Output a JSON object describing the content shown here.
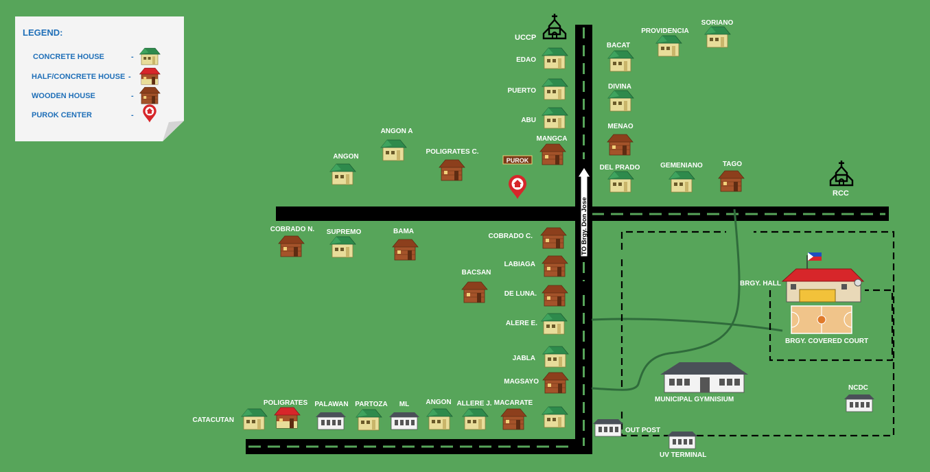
{
  "legend": {
    "title": "LEGEND:",
    "items": [
      {
        "label": "CONCRETE HOUSE",
        "sep": "-",
        "icon": "concrete-house-icon"
      },
      {
        "label": "HALF/CONCRETE HOUSE",
        "sep": "-",
        "icon": "half-concrete-house-icon"
      },
      {
        "label": "WOODEN HOUSE",
        "sep": "-",
        "icon": "wooden-house-icon"
      },
      {
        "label": "PUROK CENTER",
        "sep": "-",
        "icon": "purok-center-pin-icon"
      }
    ]
  },
  "purok_sign": "PUROK",
  "road_sign": "TO Brgy. Don Jose",
  "churches": [
    {
      "id": "uccp",
      "label": "UCCP"
    },
    {
      "id": "rcc",
      "label": "RCC"
    }
  ],
  "houses": [
    {
      "id": "edao",
      "label": "EDAO",
      "type": "concrete"
    },
    {
      "id": "puerto",
      "label": "PUERTO",
      "type": "concrete"
    },
    {
      "id": "abu",
      "label": "ABU",
      "type": "concrete"
    },
    {
      "id": "mangca",
      "label": "MANGCA",
      "type": "wooden"
    },
    {
      "id": "bacat",
      "label": "BACAT",
      "type": "concrete"
    },
    {
      "id": "providencia",
      "label": "PROVIDENCIA",
      "type": "concrete"
    },
    {
      "id": "soriano",
      "label": "SORIANO",
      "type": "concrete"
    },
    {
      "id": "divina",
      "label": "DIVINA",
      "type": "concrete"
    },
    {
      "id": "menao",
      "label": "MENAO",
      "type": "wooden"
    },
    {
      "id": "delprado",
      "label": "DEL PRADO",
      "type": "concrete"
    },
    {
      "id": "gemeniano",
      "label": "GEMENIANO",
      "type": "concrete"
    },
    {
      "id": "tago",
      "label": "TAGO",
      "type": "wooden"
    },
    {
      "id": "angona",
      "label": "ANGON A",
      "type": "concrete"
    },
    {
      "id": "angon",
      "label": "ANGON",
      "type": "concrete"
    },
    {
      "id": "poligratesc",
      "label": "POLIGRATES C.",
      "type": "wooden"
    },
    {
      "id": "cobradon",
      "label": "COBRADO N.",
      "type": "wooden"
    },
    {
      "id": "supremo",
      "label": "SUPREMO",
      "type": "concrete"
    },
    {
      "id": "bama",
      "label": "BAMA",
      "type": "wooden"
    },
    {
      "id": "cobradoc",
      "label": "COBRADO C.",
      "type": "wooden"
    },
    {
      "id": "labiaga",
      "label": "LABIAGA",
      "type": "wooden"
    },
    {
      "id": "bacsan",
      "label": "BACSAN",
      "type": "wooden"
    },
    {
      "id": "deluna",
      "label": "DE LUNA.",
      "type": "wooden"
    },
    {
      "id": "alere",
      "label": "ALERE E.",
      "type": "concrete"
    },
    {
      "id": "jabla",
      "label": "JABLA",
      "type": "concrete"
    },
    {
      "id": "magsayo",
      "label": "MAGSAYO",
      "type": "wooden"
    },
    {
      "id": "catacutan",
      "label": "CATACUTAN",
      "type": "concrete"
    },
    {
      "id": "poligrates",
      "label": "POLIGRATES",
      "type": "half"
    },
    {
      "id": "palawan",
      "label": "PALAWAN",
      "type": "building"
    },
    {
      "id": "partoza",
      "label": "PARTOZA",
      "type": "concrete"
    },
    {
      "id": "ml",
      "label": "ML",
      "type": "building"
    },
    {
      "id": "angon2",
      "label": "ANGON",
      "type": "concrete"
    },
    {
      "id": "allere",
      "label": "ALLERE J.",
      "type": "concrete"
    },
    {
      "id": "macarate",
      "label": "MACARATE",
      "type": "wooden"
    },
    {
      "id": "unlabeled",
      "label": "",
      "type": "concrete"
    }
  ],
  "facilities": {
    "hall": "BRGY. HALL",
    "court": "BRGY. COVERED COURT",
    "gym": "MUNICIPAL  GYMNISIUM",
    "ncdc": "NCDC",
    "outpost": "OUT POST",
    "terminal": "UV TERMINAL"
  },
  "colors": {
    "grass": "#57a55a",
    "road": "#000000",
    "road_dash": "#57a55a",
    "legend_text": "#1f6fb8",
    "concrete_roof": "#2e8a4c",
    "concrete_wall": "#e8dd9a",
    "half_roof": "#d7262a",
    "wood": "#9a4a22",
    "pin": "#d7262a",
    "hall_roof": "#d7262a",
    "path": "#2f6b3b"
  }
}
